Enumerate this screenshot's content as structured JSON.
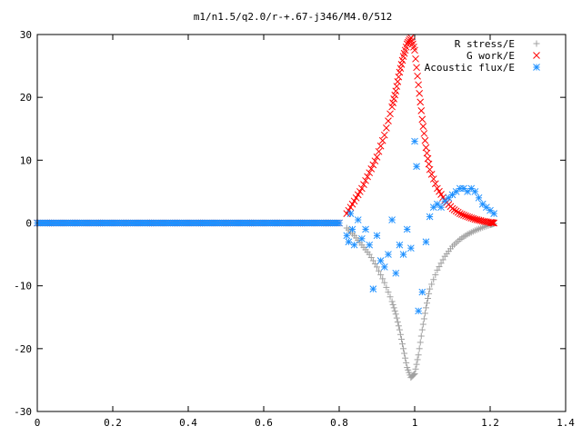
{
  "chart_data": {
    "type": "scatter",
    "title": "m1/n1.5/q2.0/r-+.67-j346/M4.0/512",
    "xlabel": "",
    "ylabel": "",
    "xlim": [
      0,
      1.4
    ],
    "ylim": [
      -30,
      30
    ],
    "xticks": [
      "0",
      "0.2",
      "0.4",
      "0.6",
      "0.8",
      "1",
      "1.2",
      "1.4"
    ],
    "yticks": [
      "30",
      "20",
      "10",
      "0",
      "-10",
      "-20",
      "-30"
    ],
    "grid": false,
    "legend_position": "top-right",
    "series": [
      {
        "name": "R stress/E",
        "marker": "plus",
        "color": "#a0a0a0",
        "x": [
          0.0,
          0.1,
          0.2,
          0.3,
          0.4,
          0.5,
          0.6,
          0.7,
          0.8,
          0.82,
          0.84,
          0.86,
          0.88,
          0.9,
          0.92,
          0.94,
          0.95,
          0.96,
          0.97,
          0.98,
          0.99,
          1.0,
          1.01,
          1.02,
          1.03,
          1.04,
          1.06,
          1.08,
          1.1,
          1.12,
          1.14,
          1.16,
          1.18,
          1.2,
          1.21
        ],
        "y": [
          0,
          0,
          0,
          0,
          0,
          0,
          0,
          0,
          0,
          -0.8,
          -2.0,
          -3.5,
          -5.0,
          -7.0,
          -9.5,
          -12.5,
          -14.5,
          -17.0,
          -20.0,
          -23.0,
          -24.6,
          -24.0,
          -21.0,
          -17.0,
          -13.5,
          -10.5,
          -7.5,
          -5.3,
          -3.7,
          -2.6,
          -1.8,
          -1.2,
          -0.7,
          -0.3,
          -0.1
        ]
      },
      {
        "name": "G work/E",
        "marker": "cross",
        "color": "#ff0000",
        "x": [
          0.0,
          0.1,
          0.2,
          0.3,
          0.4,
          0.5,
          0.6,
          0.7,
          0.8,
          0.82,
          0.84,
          0.86,
          0.88,
          0.9,
          0.92,
          0.94,
          0.95,
          0.96,
          0.97,
          0.98,
          0.99,
          1.0,
          1.01,
          1.02,
          1.03,
          1.04,
          1.06,
          1.08,
          1.1,
          1.12,
          1.14,
          1.16,
          1.18,
          1.2,
          1.21
        ],
        "y": [
          0,
          0,
          0,
          0,
          0,
          0,
          0,
          0,
          0,
          1.5,
          3.5,
          5.5,
          8.0,
          10.5,
          14.0,
          18.5,
          21.0,
          24.0,
          26.5,
          28.5,
          29.5,
          27.5,
          22.0,
          16.5,
          12.0,
          8.5,
          5.5,
          3.6,
          2.3,
          1.5,
          1.0,
          0.6,
          0.3,
          0.1,
          0.0
        ]
      },
      {
        "name": "Acoustic flux/E",
        "marker": "star",
        "color": "#1e90ff",
        "x": [
          0.0,
          0.1,
          0.2,
          0.3,
          0.4,
          0.5,
          0.6,
          0.7,
          0.8,
          0.82,
          0.825,
          0.83,
          0.835,
          0.84,
          0.85,
          0.86,
          0.87,
          0.88,
          0.89,
          0.9,
          0.91,
          0.92,
          0.93,
          0.94,
          0.95,
          0.96,
          0.97,
          0.98,
          0.99,
          1.0,
          1.005,
          1.01,
          1.02,
          1.03,
          1.04,
          1.05,
          1.06,
          1.07,
          1.08,
          1.09,
          1.1,
          1.11,
          1.12,
          1.13,
          1.14,
          1.15,
          1.16,
          1.17,
          1.18,
          1.19,
          1.2,
          1.21
        ],
        "y": [
          0,
          0,
          0,
          0,
          0,
          0,
          0,
          0,
          0,
          -2.0,
          -3.0,
          1.5,
          -1.0,
          -3.5,
          0.5,
          -2.5,
          -1.0,
          -3.5,
          -10.5,
          -2.0,
          -6.0,
          -7.0,
          -5.0,
          0.5,
          -8.0,
          -3.5,
          -5.0,
          -1.0,
          -4.0,
          13.0,
          9.0,
          -14.0,
          -11.0,
          -3.0,
          1.0,
          2.5,
          3.0,
          2.5,
          3.5,
          4.0,
          4.5,
          5.0,
          5.5,
          5.5,
          5.0,
          5.5,
          5.0,
          4.0,
          3.0,
          2.5,
          2.0,
          1.5
        ]
      }
    ]
  }
}
